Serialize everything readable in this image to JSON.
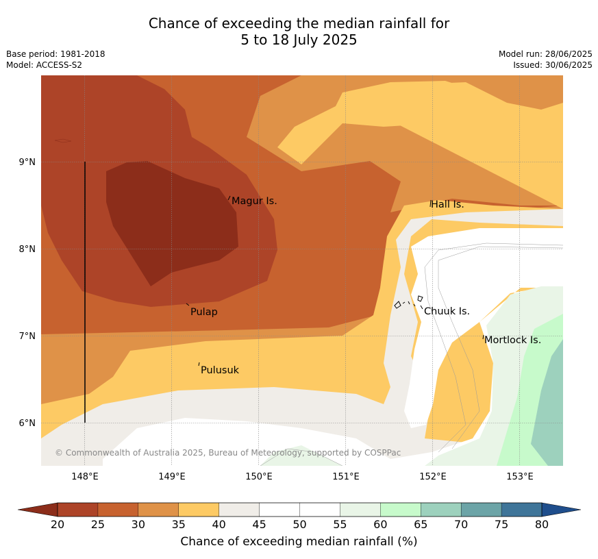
{
  "title": {
    "line1": "Chance of exceeding the median rainfall for",
    "line2": "5 to 18 July 2025"
  },
  "meta": {
    "base_period": "Base period: 1981-2018",
    "model": "Model: ACCESS-S2",
    "model_run": "Model run: 28/06/2025",
    "issued": "Issued: 30/06/2025"
  },
  "map": {
    "lon_range": [
      147.5,
      153.5
    ],
    "lat_range": [
      5.5,
      10.0
    ],
    "x_ticks": [
      "148°E",
      "149°E",
      "150°E",
      "151°E",
      "152°E",
      "153°E"
    ],
    "y_ticks": [
      "9°N",
      "8°N",
      "7°N",
      "6°N"
    ],
    "places": [
      {
        "name": "Magur Is.",
        "lon": 149.68,
        "lat": 8.58
      },
      {
        "name": "Hall Is.",
        "lon": 151.98,
        "lat": 8.52
      },
      {
        "name": "Pulap",
        "lon": 149.19,
        "lat": 7.37
      },
      {
        "name": "Chuuk Is.",
        "lon": 151.75,
        "lat": 7.35
      },
      {
        "name": "Mortlock Is.",
        "lon": 152.58,
        "lat": 7.01
      },
      {
        "name": "Pulusuk",
        "lon": 149.32,
        "lat": 6.7
      }
    ],
    "copyright": "© Commonwealth of Australia 2025, Bureau of Meteorology, supported by COSPPac"
  },
  "colorbar": {
    "label": "Chance of exceeding median rainfall (%)",
    "ticks": [
      "20",
      "25",
      "30",
      "35",
      "40",
      "45",
      "50",
      "55",
      "60",
      "65",
      "70",
      "75",
      "80"
    ],
    "colors": [
      "#8c2d1a",
      "#ad4428",
      "#c7622f",
      "#df9248",
      "#fdca64",
      "#f0ede8",
      "#ffffff",
      "#ffffff",
      "#e9f5e7",
      "#c7facb",
      "#9dd1bd",
      "#6ca4a7",
      "#3f7599",
      "#1f4e8c"
    ]
  }
}
